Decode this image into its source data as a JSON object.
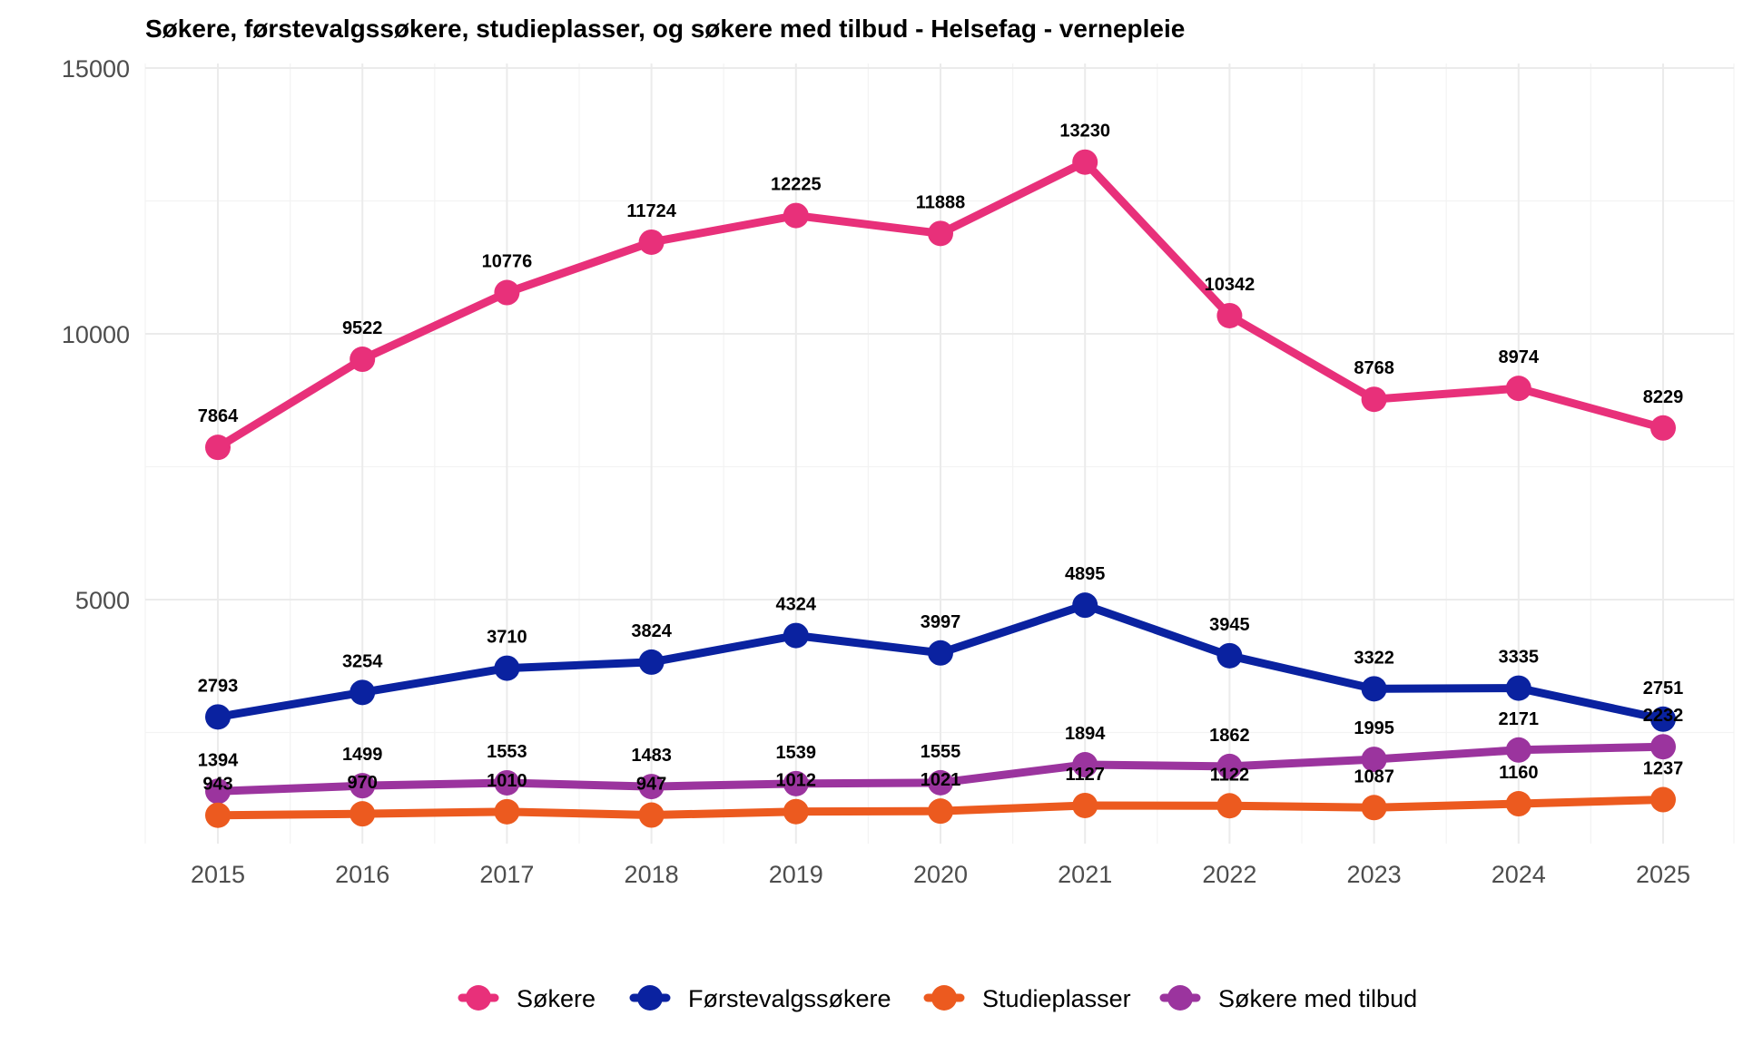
{
  "chart_data": {
    "type": "line",
    "title": "Søkere, førstevalgssøkere, studieplasser, og søkere med tilbud - Helsefag - vernepleie",
    "xlabel": "",
    "ylabel": "",
    "x": [
      "2015",
      "2016",
      "2017",
      "2018",
      "2019",
      "2020",
      "2021",
      "2022",
      "2023",
      "2024",
      "2025"
    ],
    "ylim": [
      0,
      15000
    ],
    "yticks": [
      "5000",
      "10000",
      "15000"
    ],
    "grid": true,
    "legend_position": "bottom",
    "series": [
      {
        "name": "Søkere",
        "color": "#e8307a",
        "values": [
          7864,
          9522,
          10776,
          11724,
          12225,
          11888,
          13230,
          10342,
          8768,
          8974,
          8229
        ]
      },
      {
        "name": "Førstevalgssøkere",
        "color": "#0a22a0",
        "values": [
          2793,
          3254,
          3710,
          3824,
          4324,
          3997,
          4895,
          3945,
          3322,
          3335,
          2751
        ]
      },
      {
        "name": "Studieplasser",
        "color": "#ec5a1f",
        "values": [
          943,
          970,
          1010,
          947,
          1012,
          1021,
          1127,
          1122,
          1087,
          1160,
          1237
        ]
      },
      {
        "name": "Søkere med tilbud",
        "color": "#9b349e",
        "values": [
          1394,
          1499,
          1553,
          1483,
          1539,
          1555,
          1894,
          1862,
          1995,
          2171,
          2232
        ]
      }
    ]
  }
}
